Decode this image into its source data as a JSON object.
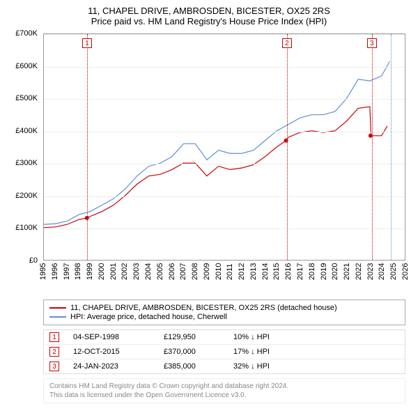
{
  "title": "11, CHAPEL DRIVE, AMBROSDEN, BICESTER, OX25 2RS",
  "subtitle": "Price paid vs. HM Land Registry's House Price Index (HPI)",
  "chart": {
    "type": "line",
    "background_color": "#ffffff",
    "grid_color": "#eeeeee",
    "border_color": "#999999",
    "xlim": [
      1995,
      2026
    ],
    "ylim": [
      0,
      700000
    ],
    "ytick_step": 100000,
    "ytick_labels": [
      "£0",
      "£100K",
      "£200K",
      "£300K",
      "£400K",
      "£500K",
      "£600K",
      "£700K"
    ],
    "xtick_step": 1,
    "xtick_labels": [
      "1995",
      "1996",
      "1997",
      "1998",
      "1999",
      "2000",
      "2001",
      "2002",
      "2003",
      "2004",
      "2005",
      "2006",
      "2007",
      "2008",
      "2009",
      "2010",
      "2011",
      "2012",
      "2013",
      "2014",
      "2015",
      "2016",
      "2017",
      "2018",
      "2019",
      "2020",
      "2021",
      "2022",
      "2023",
      "2024",
      "2025",
      "2026"
    ],
    "label_fontsize": 11,
    "series": [
      {
        "name": "price_paid",
        "color": "#cc0000",
        "line_width": 1.2,
        "x": [
          1995,
          1996,
          1997,
          1998,
          1998.7,
          1999,
          2000,
          2001,
          2002,
          2003,
          2004,
          2005,
          2006,
          2007,
          2008,
          2009,
          2010,
          2011,
          2012,
          2013,
          2014,
          2015,
          2015.8,
          2016,
          2017,
          2018,
          2019,
          2020,
          2021,
          2022,
          2023.0,
          2023.1,
          2024,
          2024.5
        ],
        "y": [
          100000,
          102000,
          110000,
          125000,
          129950,
          135000,
          150000,
          170000,
          200000,
          235000,
          260000,
          265000,
          280000,
          300000,
          300000,
          260000,
          290000,
          280000,
          285000,
          295000,
          320000,
          350000,
          370000,
          380000,
          395000,
          400000,
          395000,
          400000,
          430000,
          470000,
          475000,
          385000,
          385000,
          415000
        ]
      },
      {
        "name": "hpi",
        "color": "#5b8fd6",
        "line_width": 1.2,
        "x": [
          1995,
          1996,
          1997,
          1998,
          1999,
          2000,
          2001,
          2002,
          2003,
          2004,
          2005,
          2006,
          2007,
          2008,
          2009,
          2010,
          2011,
          2012,
          2013,
          2014,
          2015,
          2016,
          2017,
          2018,
          2019,
          2020,
          2021,
          2022,
          2023,
          2024,
          2024.7
        ],
        "y": [
          110000,
          112000,
          120000,
          140000,
          150000,
          170000,
          190000,
          220000,
          260000,
          290000,
          300000,
          320000,
          360000,
          360000,
          310000,
          340000,
          330000,
          330000,
          340000,
          370000,
          400000,
          420000,
          440000,
          450000,
          450000,
          460000,
          500000,
          560000,
          555000,
          570000,
          615000
        ]
      }
    ],
    "markers": [
      {
        "id": "1",
        "x": 1998.7,
        "y": 129950,
        "line_color": "#cc0000"
      },
      {
        "id": "2",
        "x": 2015.8,
        "y": 370000,
        "line_color": "#cc0000"
      },
      {
        "id": "3",
        "x": 2023.06,
        "y": 385000,
        "line_color": "#cc0000"
      }
    ],
    "end_marker_right": {
      "x": 2024.7,
      "color": "#5b8fd6"
    }
  },
  "legend": {
    "items": [
      {
        "color": "#cc0000",
        "label": "11, CHAPEL DRIVE, AMBROSDEN, BICESTER, OX25 2RS (detached house)"
      },
      {
        "color": "#5b8fd6",
        "label": "HPI: Average price, detached house, Cherwell"
      }
    ]
  },
  "marker_table": [
    {
      "id": "1",
      "date": "04-SEP-1998",
      "price": "£129,950",
      "delta": "10% ↓ HPI"
    },
    {
      "id": "2",
      "date": "12-OCT-2015",
      "price": "£370,000",
      "delta": "17% ↓ HPI"
    },
    {
      "id": "3",
      "date": "24-JAN-2023",
      "price": "£385,000",
      "delta": "32% ↓ HPI"
    }
  ],
  "footer": {
    "line1": "Contains HM Land Registry data © Crown copyright and database right 2024.",
    "line2": "This data is licensed under the Open Government Licence v3.0."
  }
}
